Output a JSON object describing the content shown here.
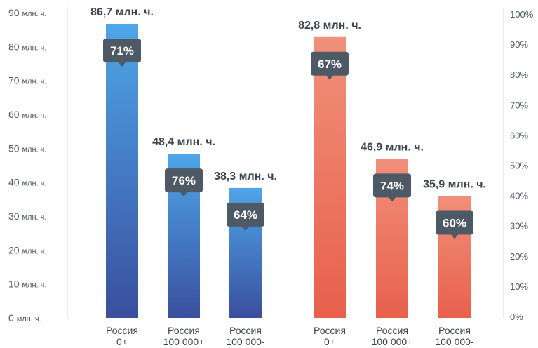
{
  "chart_data": {
    "type": "bar",
    "y_left_ticks": [
      {
        "num": "0",
        "unit": "млн. ч."
      },
      {
        "num": "10",
        "unit": "млн. ч."
      },
      {
        "num": "20",
        "unit": "млн. ч."
      },
      {
        "num": "30",
        "unit": "млн. ч."
      },
      {
        "num": "40",
        "unit": "млн. ч."
      },
      {
        "num": "50",
        "unit": "млн. ч."
      },
      {
        "num": "60",
        "unit": "млн. ч."
      },
      {
        "num": "70",
        "unit": "млн. ч."
      },
      {
        "num": "80",
        "unit": "млн. ч."
      },
      {
        "num": "90",
        "unit": "млн. ч."
      }
    ],
    "y_right_ticks": [
      "0%",
      "10%",
      "20%",
      "30%",
      "40%",
      "50%",
      "60%",
      "70%",
      "80%",
      "90%",
      "100%"
    ],
    "ylim_left": [
      0,
      90
    ],
    "ylim_right": [
      0,
      100
    ],
    "groups": [
      {
        "color_top": "#4ea6e8",
        "color_bottom": "#3a4f9e",
        "bars": [
          {
            "category": [
              "Россия",
              "0+"
            ],
            "value": 86.7,
            "value_label": "86,7 млн. ч.",
            "percent": 71,
            "percent_label": "71%"
          },
          {
            "category": [
              "Россия",
              "100 000+"
            ],
            "value": 48.4,
            "value_label": "48,4 млн. ч.",
            "percent": 76,
            "percent_label": "76%"
          },
          {
            "category": [
              "Россия",
              "100 000-"
            ],
            "value": 38.3,
            "value_label": "38,3 млн. ч.",
            "percent": 64,
            "percent_label": "64%"
          }
        ]
      },
      {
        "color_top": "#f0907a",
        "color_bottom": "#e8604c",
        "bars": [
          {
            "category": [
              "Россия",
              "0+"
            ],
            "value": 82.8,
            "value_label": "82,8 млн. ч.",
            "percent": 67,
            "percent_label": "67%"
          },
          {
            "category": [
              "Россия",
              "100 000+"
            ],
            "value": 46.9,
            "value_label": "46,9 млн. ч.",
            "percent": 74,
            "percent_label": "74%"
          },
          {
            "category": [
              "Россия",
              "100 000-"
            ],
            "value": 35.9,
            "value_label": "35,9 млн. ч.",
            "percent": 60,
            "percent_label": "60%"
          }
        ]
      }
    ],
    "grid": false,
    "badge_color": "#4d5a66",
    "axis_line_color": "#e9edf0"
  }
}
